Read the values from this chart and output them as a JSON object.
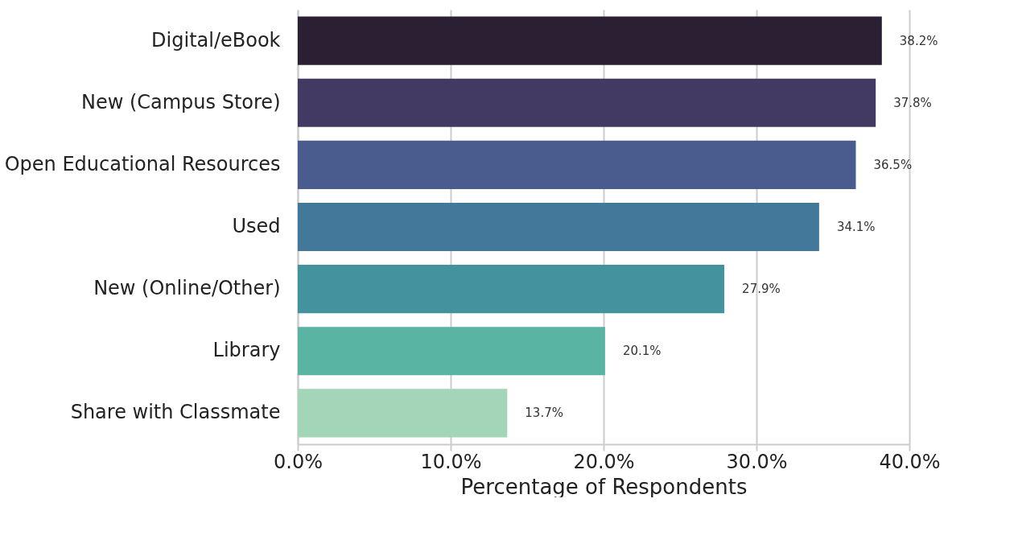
{
  "chart_data": {
    "type": "bar",
    "orientation": "horizontal",
    "xlabel": "Percentage of Respondents",
    "categories": [
      "Digital/eBook",
      "New (Campus Store)",
      "Open Educational Resources",
      "Used",
      "New (Online/Other)",
      "Library",
      "Share with Classmate"
    ],
    "values": [
      38.2,
      37.8,
      36.5,
      34.1,
      27.9,
      20.1,
      13.7
    ],
    "value_labels": [
      "38.2%",
      "37.8%",
      "36.5%",
      "34.1%",
      "27.9%",
      "20.1%",
      "13.7%"
    ],
    "colors": [
      "#2b1f33",
      "#433a63",
      "#4a5c8e",
      "#44789a",
      "#43939e",
      "#59b4a3",
      "#a3d5b8"
    ],
    "xlim": [
      0,
      40
    ],
    "xticks": [
      {
        "value": 0,
        "label": "0.0%"
      },
      {
        "value": 10,
        "label": "10.0%"
      },
      {
        "value": 20,
        "label": "20.0%"
      },
      {
        "value": 30,
        "label": "30.0%"
      },
      {
        "value": 40,
        "label": "40.0%"
      }
    ],
    "grid": "x",
    "legend": false
  }
}
